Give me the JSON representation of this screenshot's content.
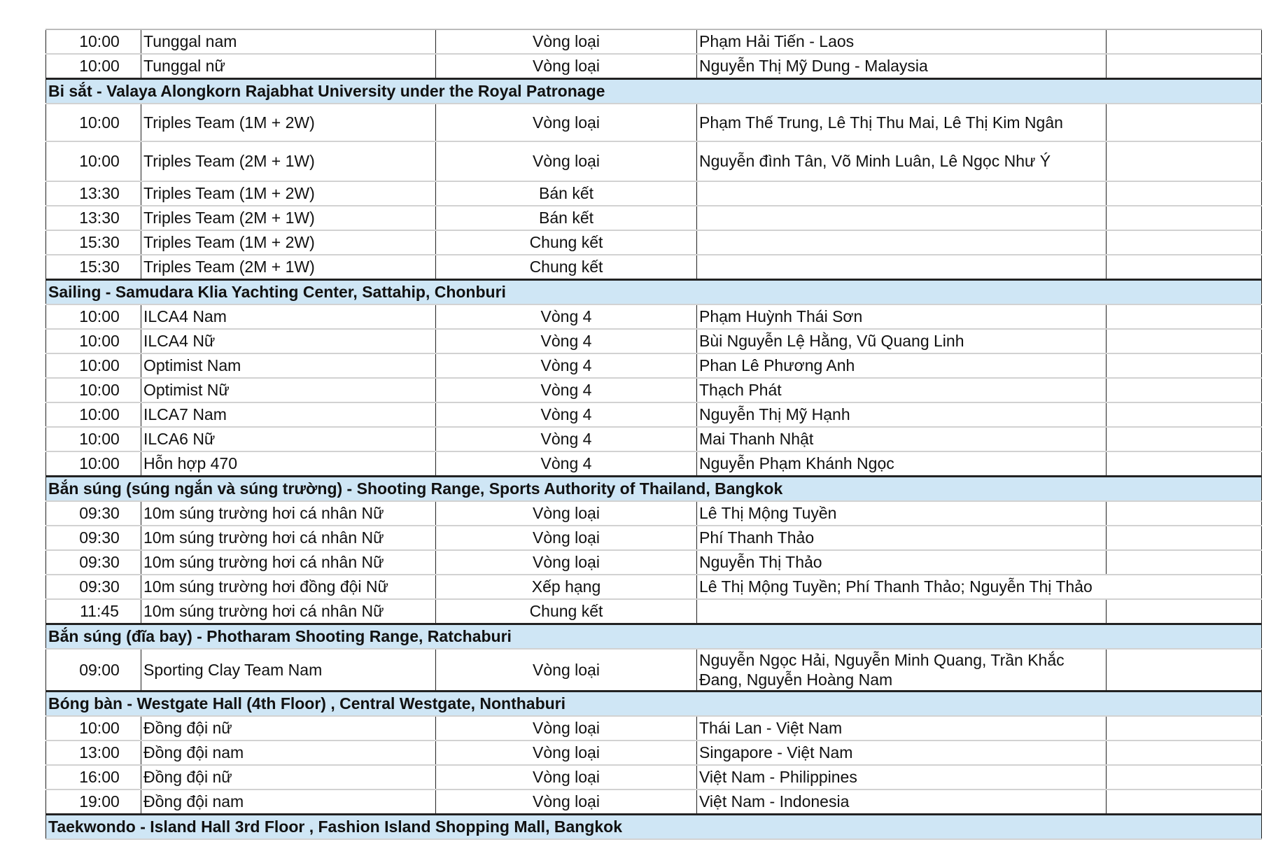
{
  "colors": {
    "header_fill": "#cfe6f5",
    "border": "#222222",
    "row_divider": "#d2d2d2"
  },
  "sections": [
    {
      "header": null,
      "rows": [
        {
          "time": "10:00",
          "event": "Tunggal nam",
          "round": "Vòng loại",
          "athletes": "Phạm Hải Tiến - Laos",
          "note": ""
        },
        {
          "time": "10:00",
          "event": "Tunggal nữ",
          "round": "Vòng loại",
          "athletes": "Nguyễn Thị Mỹ Dung - Malaysia",
          "note": ""
        }
      ]
    },
    {
      "header": "Bi sắt - Valaya Alongkorn Rajabhat University under the Royal Patronage",
      "rows": [
        {
          "time": "10:00",
          "event": "Triples Team (1M + 2W)",
          "round": "Vòng loại",
          "athletes": "Phạm Thế Trung, Lê Thị Thu Mai, Lê Thị Kim Ngân",
          "note": ""
        },
        {
          "time": "10:00",
          "event": "Triples Team (2M + 1W)",
          "round": "Vòng loại",
          "athletes": "Nguyễn đình Tân, Võ Minh Luân, Lê Ngọc Như Ý",
          "note": ""
        },
        {
          "time": "13:30",
          "event": "Triples Team (1M + 2W)",
          "round": "Bán kết",
          "athletes": "",
          "note": ""
        },
        {
          "time": "13:30",
          "event": "Triples Team (2M + 1W)",
          "round": "Bán kết",
          "athletes": "",
          "note": ""
        },
        {
          "time": "15:30",
          "event": "Triples Team (1M + 2W)",
          "round": "Chung kết",
          "athletes": "",
          "note": ""
        },
        {
          "time": "15:30",
          "event": "Triples Team (2M + 1W)",
          "round": "Chung kết",
          "athletes": "",
          "note": ""
        }
      ]
    },
    {
      "header": "Sailing - Samudara Klia Yachting Center, Sattahip, Chonburi",
      "rows": [
        {
          "time": "10:00",
          "event": "ILCA4 Nam",
          "round": "Vòng 4",
          "athletes": "Phạm Huỳnh Thái Sơn",
          "note": ""
        },
        {
          "time": "10:00",
          "event": "ILCA4 Nữ",
          "round": "Vòng 4",
          "athletes": "Bùi Nguyễn Lệ Hằng, Vũ Quang Linh",
          "note": ""
        },
        {
          "time": "10:00",
          "event": "Optimist Nam",
          "round": "Vòng 4",
          "athletes": "Phan Lê Phương Anh",
          "note": ""
        },
        {
          "time": "10:00",
          "event": "Optimist Nữ",
          "round": "Vòng 4",
          "athletes": "Thạch Phát",
          "note": ""
        },
        {
          "time": "10:00",
          "event": "ILCA7 Nam",
          "round": "Vòng 4",
          "athletes": "Nguyễn Thị Mỹ Hạnh",
          "note": ""
        },
        {
          "time": "10:00",
          "event": "ILCA6 Nữ",
          "round": "Vòng 4",
          "athletes": "Mai Thanh Nhật",
          "note": ""
        },
        {
          "time": "10:00",
          "event": "Hỗn hợp 470",
          "round": "Vòng 4",
          "athletes": "Nguyễn Phạm Khánh Ngọc",
          "note": ""
        }
      ]
    },
    {
      "header": "Bắn súng (súng ngắn và súng trường) - Shooting Range, Sports Authority of Thailand, Bangkok",
      "rows": [
        {
          "time": "09:30",
          "event": "10m súng trường hơi cá nhân Nữ",
          "round": "Vòng loại",
          "athletes": "Lê Thị Mộng Tuyền",
          "note": ""
        },
        {
          "time": "09:30",
          "event": "10m súng trường hơi cá nhân Nữ",
          "round": "Vòng loại",
          "athletes": "Phí Thanh Thảo",
          "note": ""
        },
        {
          "time": "09:30",
          "event": "10m súng trường hơi cá nhân Nữ",
          "round": "Vòng loại",
          "athletes": "Nguyễn Thị Thảo",
          "note": ""
        },
        {
          "time": "09:30",
          "event": "10m súng trường hơi đồng đội Nữ",
          "round": "Xếp hạng",
          "athletes": "Lê Thị Mộng Tuyền; Phí Thanh Thảo; Nguyễn Thị Thảo",
          "note": ""
        },
        {
          "time": "11:45",
          "event": "10m súng trường hơi cá nhân Nữ",
          "round": "Chung kết",
          "athletes": "",
          "note": ""
        }
      ]
    },
    {
      "header": "Bắn súng (đĩa bay) - Photharam Shooting Range, Ratchaburi",
      "rows": [
        {
          "time": "09:00",
          "event": "Sporting Clay Team Nam",
          "round": "Vòng loại",
          "athletes": "Nguyễn Ngọc Hải, Nguyễn Minh Quang, Trần Khắc Đang, Nguyễn Hoàng Nam",
          "note": ""
        }
      ]
    },
    {
      "header": "Bóng bàn - Westgate Hall (4th Floor) , Central Westgate, Nonthaburi",
      "rows": [
        {
          "time": "10:00",
          "event": "Đồng đội nữ",
          "round": "Vòng loại",
          "athletes": "Thái Lan - Việt Nam",
          "note": ""
        },
        {
          "time": "13:00",
          "event": "Đồng đội nam",
          "round": "Vòng loại",
          "athletes": "Singapore - Việt Nam",
          "note": ""
        },
        {
          "time": "16:00",
          "event": "Đồng đội nữ",
          "round": "Vòng loại",
          "athletes": "Việt Nam - Philippines",
          "note": ""
        },
        {
          "time": "19:00",
          "event": "Đồng đội nam",
          "round": "Vòng loại",
          "athletes": "Việt Nam - Indonesia",
          "note": ""
        }
      ]
    },
    {
      "header": "Taekwondo - Island Hall 3rd Floor , Fashion Island Shopping Mall, Bangkok",
      "rows": []
    }
  ]
}
